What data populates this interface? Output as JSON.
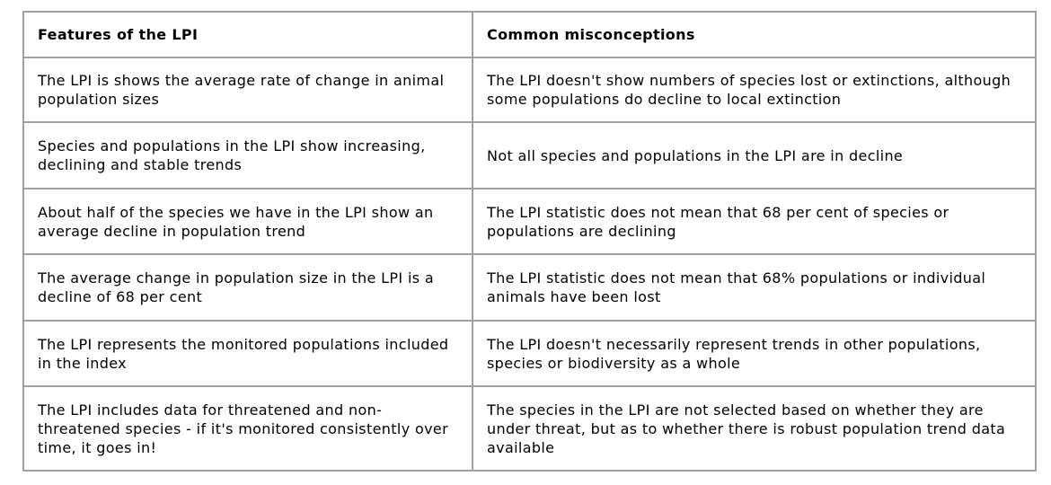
{
  "table": {
    "headers": [
      "Features of the LPI",
      "Common misconceptions"
    ],
    "rows": [
      [
        "The LPI is shows the average rate of change in animal population sizes",
        "The LPI doesn't show numbers of species lost or extinctions, although some populations do decline to local extinction"
      ],
      [
        "Species and populations in the LPI show increasing, declining and stable trends",
        "Not all species and populations in the LPI are in decline"
      ],
      [
        "About half of the species we have in the LPI show an average decline in population trend",
        "The LPI statistic does not mean that 68 per cent of species or populations are declining"
      ],
      [
        "The average change in population size in the LPI is a decline of 68 per cent",
        "The LPI statistic does not mean that 68% populations or individual animals have been lost"
      ],
      [
        "The LPI represents the monitored populations included in the index",
        "The LPI doesn't necessarily represent trends in other populations, species or biodiversity as a whole"
      ],
      [
        "The LPI includes data for threatened and non-threatened species - if it's monitored consistently over time, it goes in!",
        "The species in the LPI are not selected based on whether they are under threat, but as to whether there is robust population trend data available"
      ]
    ]
  }
}
